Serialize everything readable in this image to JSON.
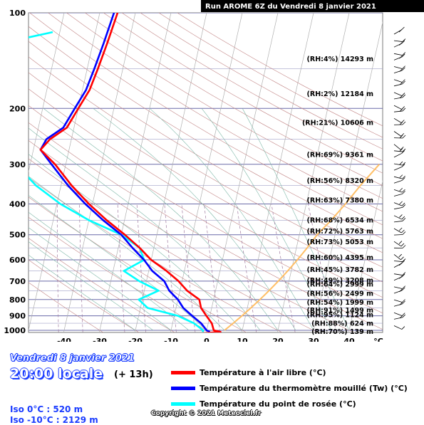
{
  "title": "Run AROME  6Z du Vendredi 8 janvier 2021",
  "chart_data": {
    "type": "line",
    "chart_kind": "skew-T log-P sounding",
    "y_scale": "log",
    "y_unit": "hPa",
    "x_unit": "°C",
    "mixing_ratio_unit": "g/kg",
    "ylim": [
      1030,
      100
    ],
    "xlim": [
      -50,
      48
    ],
    "pressure_ticks": [
      100,
      200,
      300,
      400,
      500,
      600,
      700,
      800,
      900,
      1000
    ],
    "temperature_ticks": [
      -40,
      -30,
      -20,
      -10,
      0,
      10,
      20,
      30,
      40
    ],
    "mixing_ratio_ticks": [
      "0.1",
      "0.2",
      "0.6",
      "1.0",
      "2.0",
      "3.0",
      "5.0",
      "10.0",
      "20.0",
      "40.0"
    ],
    "series": [
      {
        "name": "Température à l'air libre (°C)",
        "color": "#ff0000",
        "points": [
          [
            1030,
            -5
          ],
          [
            1012,
            4
          ],
          [
            1000,
            2
          ],
          [
            950,
            1
          ],
          [
            900,
            -1
          ],
          [
            850,
            -3
          ],
          [
            800,
            -4
          ],
          [
            750,
            -8
          ],
          [
            700,
            -11
          ],
          [
            650,
            -15
          ],
          [
            600,
            -20
          ],
          [
            550,
            -24
          ],
          [
            500,
            -29
          ],
          [
            450,
            -35
          ],
          [
            400,
            -41
          ],
          [
            350,
            -47
          ],
          [
            300,
            -53
          ],
          [
            270,
            -58
          ],
          [
            250,
            -56
          ],
          [
            230,
            -52
          ],
          [
            200,
            -50
          ],
          [
            175,
            -48
          ],
          [
            150,
            -47
          ],
          [
            125,
            -46
          ],
          [
            100,
            -45
          ]
        ]
      },
      {
        "name": "Température du thermomètre mouillé (Tw) (°C)",
        "color": "#0000ff",
        "points": [
          [
            1012,
            1
          ],
          [
            1000,
            0
          ],
          [
            950,
            -2
          ],
          [
            900,
            -5
          ],
          [
            850,
            -8
          ],
          [
            800,
            -10
          ],
          [
            750,
            -13
          ],
          [
            700,
            -15
          ],
          [
            650,
            -19
          ],
          [
            600,
            -22
          ],
          [
            550,
            -26
          ],
          [
            500,
            -30
          ],
          [
            450,
            -36
          ],
          [
            400,
            -42
          ],
          [
            350,
            -48
          ],
          [
            300,
            -54
          ],
          [
            270,
            -58
          ],
          [
            250,
            -57
          ],
          [
            230,
            -53
          ],
          [
            200,
            -51
          ],
          [
            175,
            -49
          ],
          [
            150,
            -48
          ],
          [
            125,
            -47
          ],
          [
            100,
            -46
          ]
        ]
      },
      {
        "name": "Température du point de rosée (°C)",
        "color": "#00ffff",
        "points": [
          [
            1012,
            -1
          ],
          [
            1000,
            -1
          ],
          [
            950,
            -4
          ],
          [
            900,
            -9
          ],
          [
            850,
            -18
          ],
          [
            800,
            -21
          ],
          [
            750,
            -16
          ],
          [
            700,
            -22
          ],
          [
            650,
            -27
          ],
          [
            600,
            -22
          ],
          [
            550,
            -24
          ],
          [
            500,
            -30
          ],
          [
            450,
            -40
          ],
          [
            400,
            -49
          ],
          [
            350,
            -57
          ],
          [
            300,
            -64
          ],
          [
            270,
            -68
          ],
          [
            250,
            -70
          ],
          [
            220,
            -72
          ],
          [
            200,
            -75
          ],
          [
            175,
            -79
          ],
          [
            160,
            -82
          ],
          [
            150,
            -84
          ],
          [
            125,
            -76
          ],
          [
            115,
            -62
          ]
        ]
      },
      {
        "name": "",
        "color": "#ffbf66",
        "points": [
          [
            1000,
            5
          ],
          [
            950,
            7
          ],
          [
            900,
            9
          ],
          [
            850,
            11
          ],
          [
            800,
            13
          ],
          [
            750,
            15
          ],
          [
            700,
            17
          ],
          [
            650,
            19
          ],
          [
            600,
            21
          ],
          [
            550,
            23
          ],
          [
            500,
            25
          ],
          [
            450,
            28
          ],
          [
            400,
            31
          ],
          [
            350,
            34
          ],
          [
            300,
            38
          ]
        ]
      }
    ],
    "level_annotations": [
      {
        "label": "(RH:4%) 14293 m",
        "p": 140
      },
      {
        "label": "(RH:2%) 12184 m",
        "p": 180
      },
      {
        "label": "(RH:21%) 10606 m",
        "p": 222
      },
      {
        "label": "(RH:69%) 9361 m",
        "p": 280
      },
      {
        "label": "(RH:56%) 8320 m",
        "p": 338
      },
      {
        "label": "(RH:63%) 7380 m",
        "p": 390
      },
      {
        "label": "(RH:68%) 6534 m",
        "p": 450
      },
      {
        "label": "(RH:72%) 5763 m",
        "p": 488
      },
      {
        "label": "(RH:73%) 5053 m",
        "p": 527
      },
      {
        "label": "(RH:60%) 4395 m",
        "p": 591
      },
      {
        "label": "(RH:45%) 3782 m",
        "p": 645
      },
      {
        "label": "(RH:49%) 3208 m",
        "p": 696
      },
      {
        "label": "(RH:64%) 2999 m",
        "p": 716
      },
      {
        "label": "(RH:56%) 2499 m",
        "p": 766
      },
      {
        "label": "(RH:54%) 1999 m",
        "p": 817
      },
      {
        "label": "(RH:91%) 1499 m",
        "p": 865
      },
      {
        "label": "(RH:95%) 1124 m",
        "p": 896
      },
      {
        "label": "(RH:88%) 624 m",
        "p": 952
      },
      {
        "label": "(RH:70%) 139 m",
        "p": 1011
      }
    ]
  },
  "info": {
    "date": "Vendredi 8 janvier 2021",
    "time": "20:00 locale",
    "offset": "(+ 13h)",
    "iso0": "Iso 0°C : 520 m",
    "iso10": "Iso -10°C : 2129 m",
    "copyright": "Copyright © 2021 Meteociel.fr"
  },
  "legend": [
    {
      "label": "Température à l'air libre (°C)",
      "color": "#ff0000"
    },
    {
      "label": "Température du thermomètre mouillé (Tw) (°C)",
      "color": "#0000ff"
    },
    {
      "label": "Température du point de rosée (°C)",
      "color": "#00ffff"
    }
  ]
}
